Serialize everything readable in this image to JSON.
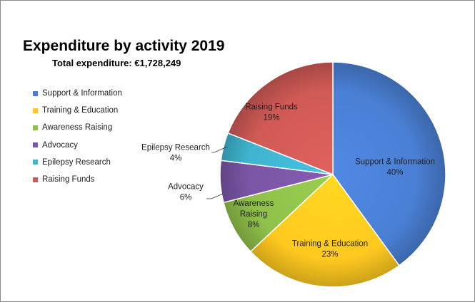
{
  "chart_data": {
    "type": "pie",
    "title": "Expenditure by activity 2019",
    "subtitle": "Total expenditure: €1,728,249",
    "legend_position": "left",
    "slices": [
      {
        "name": "Support & Information",
        "label_lines": [
          "Support & Information"
        ],
        "value": 40,
        "value_label": "40%",
        "color": "#4a7fd4"
      },
      {
        "name": "Training & Education",
        "label_lines": [
          "Training & Education"
        ],
        "value": 23,
        "value_label": "23%",
        "color": "#ffc91f"
      },
      {
        "name": "Awareness Raising",
        "label_lines": [
          "Awareness",
          "Raising"
        ],
        "value": 8,
        "value_label": "8%",
        "color": "#8fc04a"
      },
      {
        "name": "Advocacy",
        "label_lines": [
          "Advocacy"
        ],
        "value": 6,
        "value_label": "6%",
        "color": "#7b55a6"
      },
      {
        "name": "Epilepsy Research",
        "label_lines": [
          "Epilepsy Research"
        ],
        "value": 4,
        "value_label": "4%",
        "color": "#3fb5d0"
      },
      {
        "name": "Raising Funds",
        "label_lines": [
          "Raising Funds"
        ],
        "value": 19,
        "value_label": "19%",
        "color": "#d05a56"
      }
    ]
  }
}
